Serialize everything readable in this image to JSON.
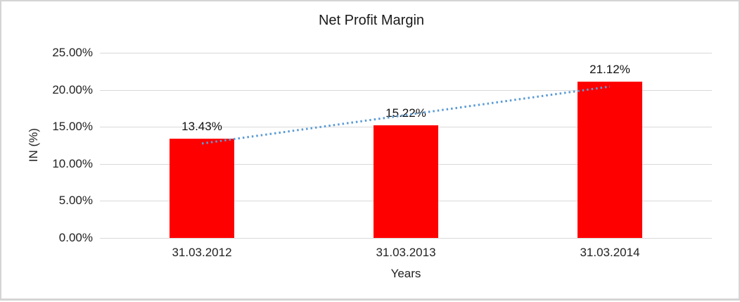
{
  "chart_data": {
    "type": "bar",
    "title": "Net Profit Margin",
    "xlabel": "Years",
    "ylabel": "IN (%)",
    "categories": [
      "31.03.2012",
      "31.03.2013",
      "31.03.2014"
    ],
    "values": [
      13.43,
      15.22,
      21.12
    ],
    "data_labels": [
      "13.43%",
      "15.22%",
      "21.12%"
    ],
    "ylim": [
      0,
      25
    ],
    "ytick_step": 5,
    "ytick_labels": [
      "0.00%",
      "5.00%",
      "10.00%",
      "15.00%",
      "20.00%",
      "25.00%"
    ],
    "grid": true,
    "legend": "none",
    "bar_color": "#ff0000",
    "gridline_color": "#d9d9d9",
    "frame_border_color": "#d4d4d4",
    "trendline": {
      "style": "dotted",
      "color": "#5b9bd5",
      "start_value": 12.75,
      "end_value": 20.44
    }
  }
}
